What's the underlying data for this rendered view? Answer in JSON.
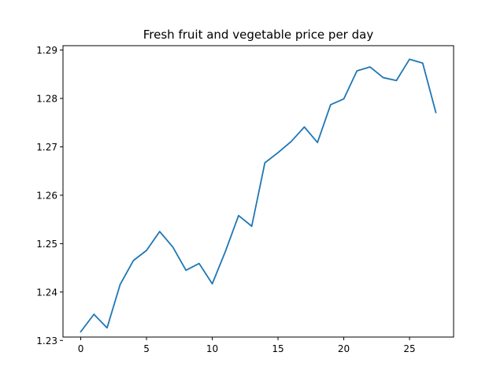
{
  "chart_data": {
    "type": "line",
    "title": "Fresh fruit and vegetable price per day",
    "xlabel": "",
    "ylabel": "",
    "xlim": [
      -1.35,
      28.35
    ],
    "ylim": [
      1.2307,
      1.2909
    ],
    "xticks": [
      0,
      5,
      10,
      15,
      20,
      25
    ],
    "yticks": [
      1.23,
      1.24,
      1.25,
      1.26,
      1.27,
      1.28,
      1.29
    ],
    "grid": false,
    "legend": "none",
    "series": [
      {
        "color": "#1f77b4",
        "x": [
          0,
          1,
          2,
          3,
          4,
          5,
          6,
          7,
          8,
          9,
          10,
          11,
          12,
          13,
          14,
          15,
          16,
          17,
          18,
          19,
          20,
          21,
          22,
          23,
          24,
          25,
          26,
          27
        ],
        "y": [
          1.2318,
          1.2354,
          1.2326,
          1.2416,
          1.2465,
          1.2486,
          1.2525,
          1.2493,
          1.2445,
          1.2459,
          1.2417,
          1.2484,
          1.2558,
          1.2536,
          1.2667,
          1.2688,
          1.2711,
          1.2741,
          1.2709,
          1.2787,
          1.2799,
          1.2857,
          1.2865,
          1.2843,
          1.2837,
          1.2881,
          1.2873,
          1.2771
        ]
      }
    ]
  }
}
